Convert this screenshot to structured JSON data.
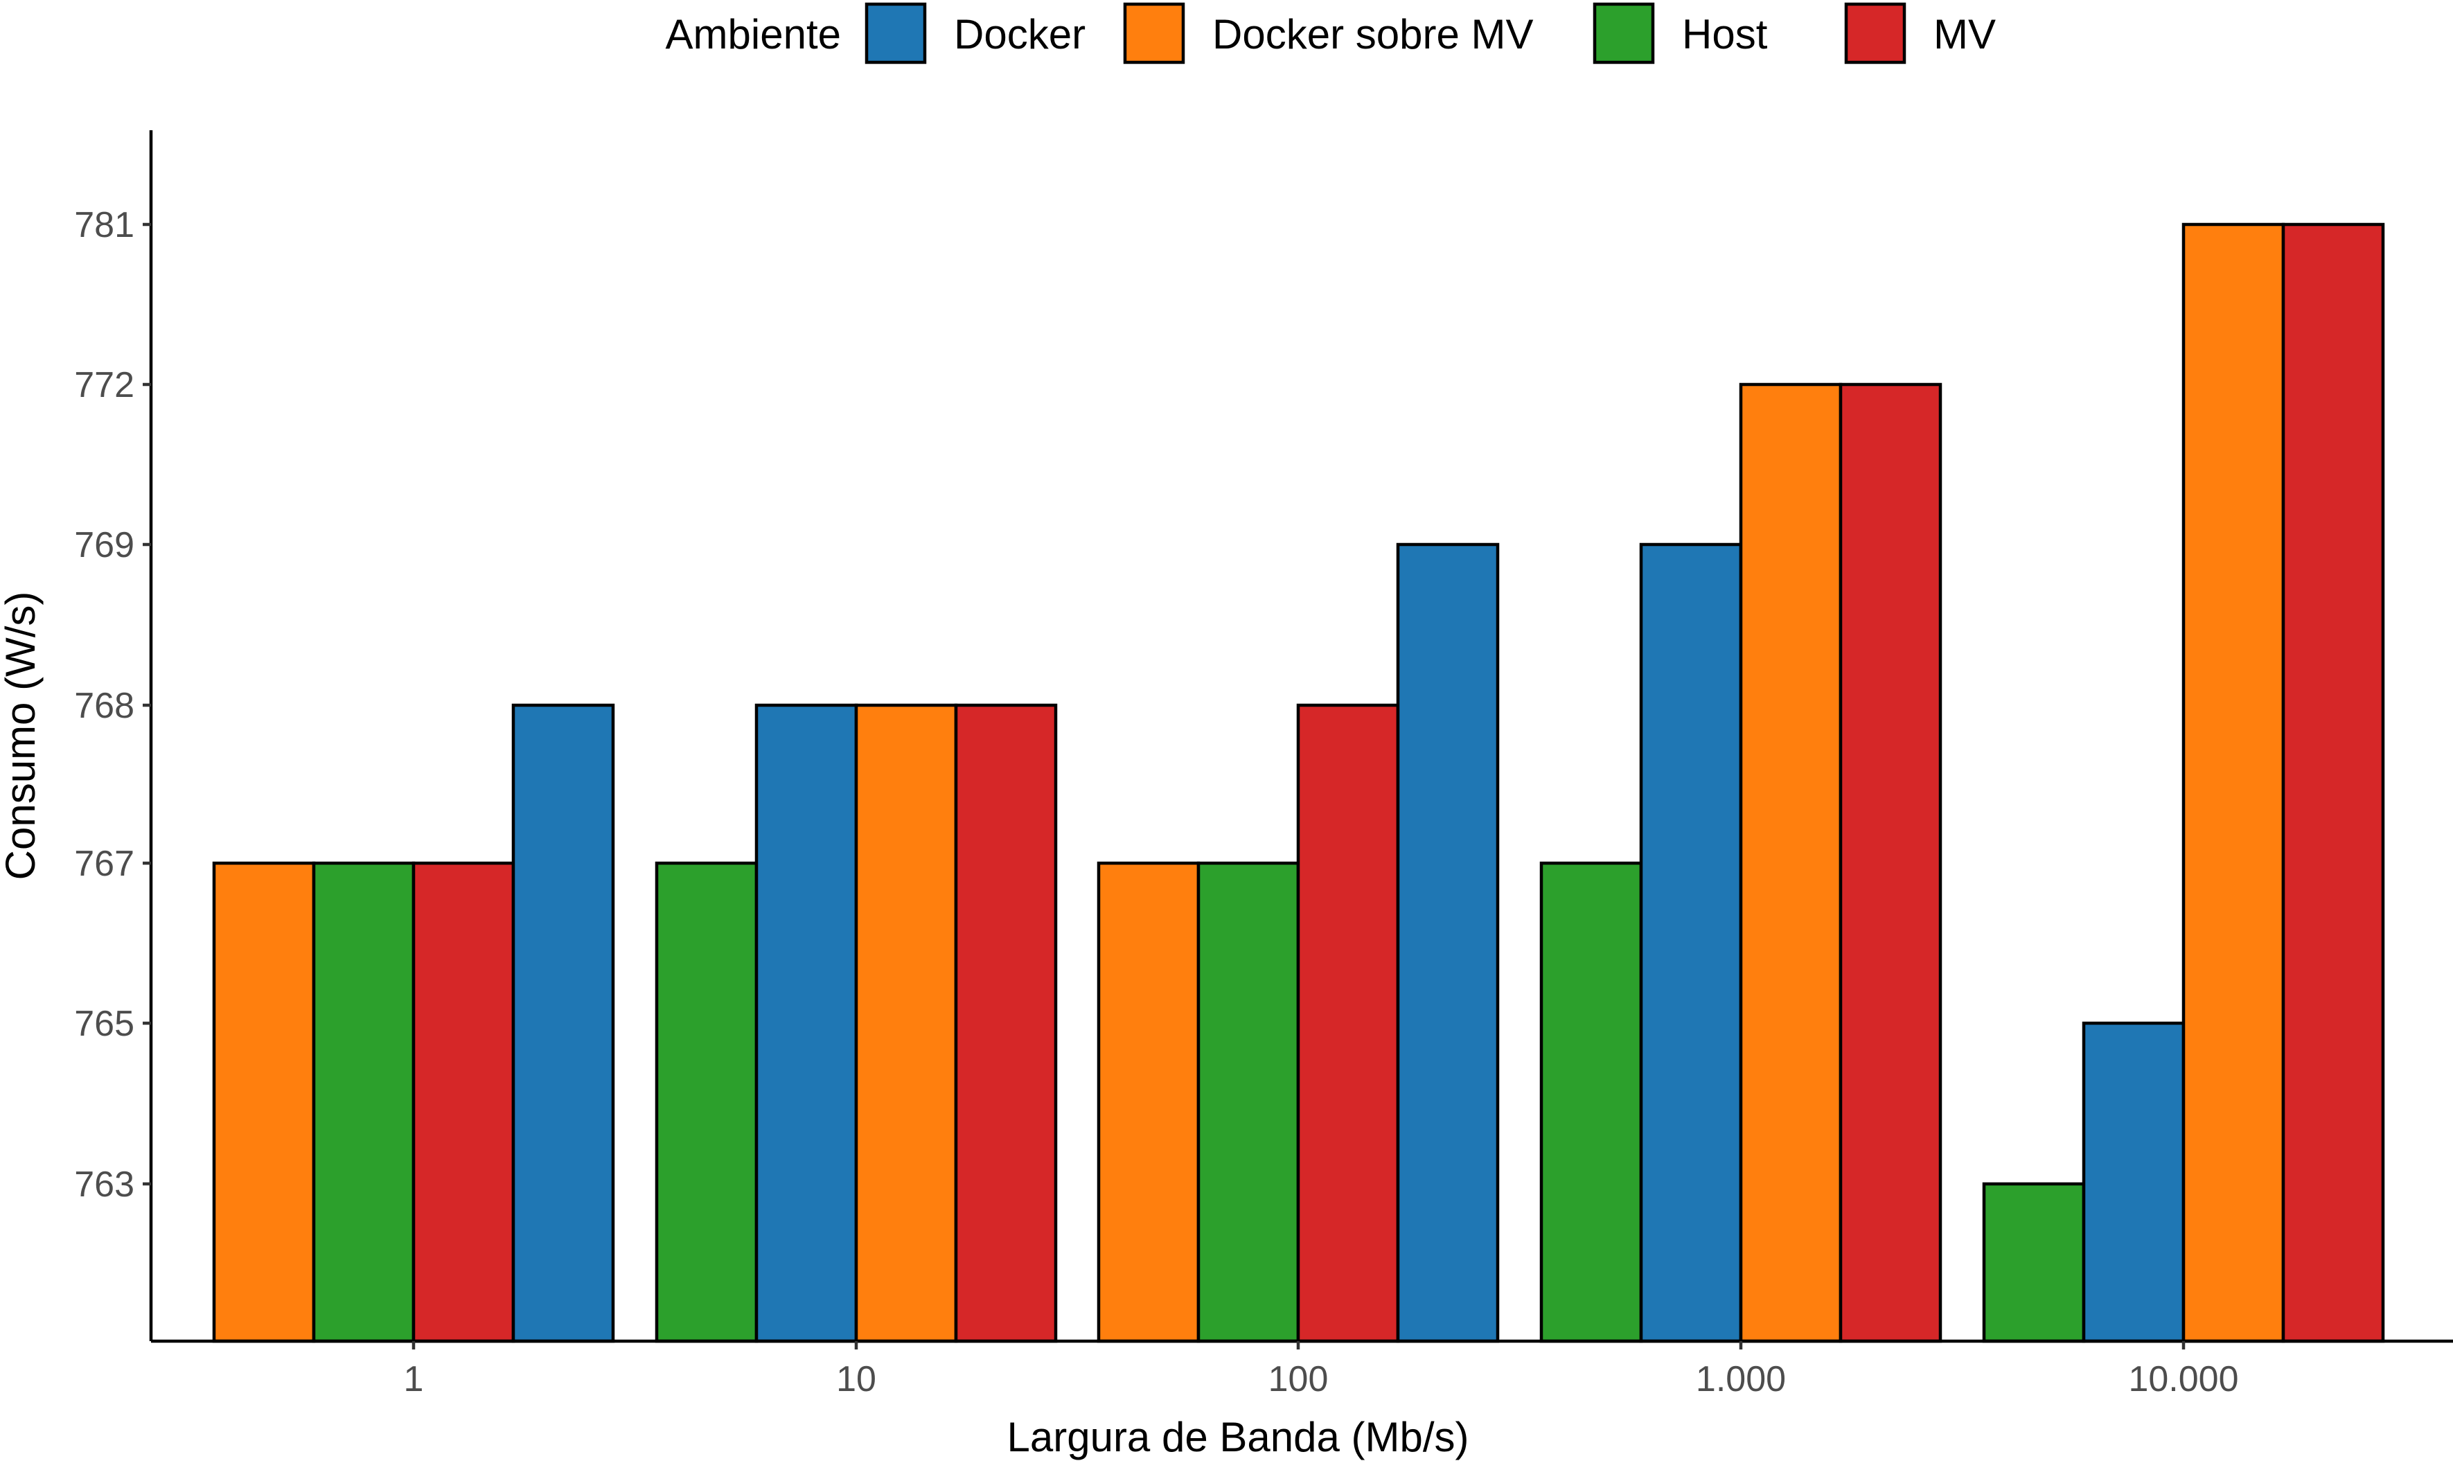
{
  "chart_data": {
    "type": "bar",
    "xlabel": "Largura de Banda (Mb/s)",
    "ylabel": "Consumo (W/s)",
    "legend_title": "Ambiente",
    "legend_position": "top",
    "grid": false,
    "y_ticks": [
      "763",
      "765",
      "767",
      "768",
      "769",
      "772",
      "781"
    ],
    "categories": [
      "1",
      "10",
      "100",
      "1.000",
      "10.000"
    ],
    "series_styles": [
      {
        "name": "Docker",
        "color": "#1f77b4"
      },
      {
        "name": "Docker sobre MV",
        "color": "#ff7f0e"
      },
      {
        "name": "Host",
        "color": "#2ca02c"
      },
      {
        "name": "MV",
        "color": "#d62728"
      }
    ],
    "groups": [
      {
        "category": "1",
        "bars": [
          {
            "series": "Docker sobre MV",
            "value": 767
          },
          {
            "series": "Host",
            "value": 767
          },
          {
            "series": "MV",
            "value": 767
          },
          {
            "series": "Docker",
            "value": 768
          }
        ]
      },
      {
        "category": "10",
        "bars": [
          {
            "series": "Host",
            "value": 767
          },
          {
            "series": "Docker",
            "value": 768
          },
          {
            "series": "Docker sobre MV",
            "value": 768
          },
          {
            "series": "MV",
            "value": 768
          }
        ]
      },
      {
        "category": "100",
        "bars": [
          {
            "series": "Docker sobre MV",
            "value": 767
          },
          {
            "series": "Host",
            "value": 767
          },
          {
            "series": "MV",
            "value": 768
          },
          {
            "series": "Docker",
            "value": 769
          }
        ]
      },
      {
        "category": "1.000",
        "bars": [
          {
            "series": "Host",
            "value": 767
          },
          {
            "series": "Docker",
            "value": 769
          },
          {
            "series": "Docker sobre MV",
            "value": 772
          },
          {
            "series": "MV",
            "value": 772
          }
        ]
      },
      {
        "category": "10.000",
        "bars": [
          {
            "series": "Host",
            "value": 763
          },
          {
            "series": "Docker",
            "value": 765
          },
          {
            "series": "Docker sobre MV",
            "value": 781
          },
          {
            "series": "MV",
            "value": 781
          }
        ]
      }
    ]
  }
}
